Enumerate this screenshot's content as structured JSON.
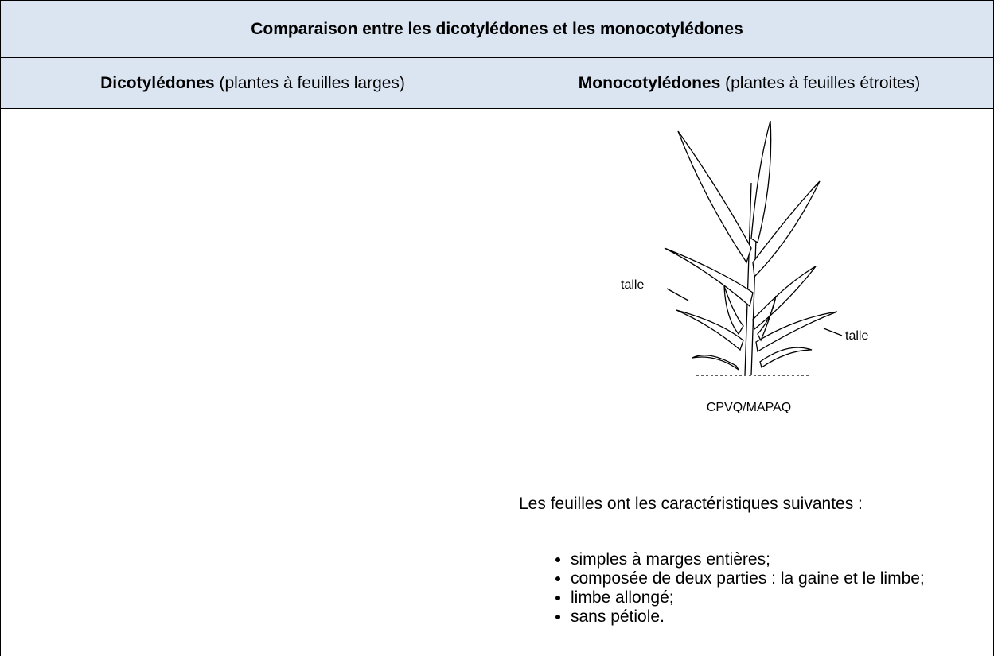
{
  "table": {
    "title": "Comparaison entre les dicotylédones et les monocotylédones",
    "columns": [
      {
        "bold": "Dicotylédones",
        "rest": "(plantes à feuilles larges)"
      },
      {
        "bold": "Monocotylédones",
        "rest": "(plantes à feuilles étroites)"
      }
    ],
    "figure": {
      "labels": [
        "talle",
        "talle"
      ],
      "caption": "CPVQ/MAPAQ"
    },
    "intro": "Les feuilles ont les caractéristiques suivantes :",
    "bullets": [
      "simples à marges entières;",
      "composée de deux parties : la gaine et le limbe;",
      "limbe allongé;",
      "sans pétiole."
    ]
  }
}
